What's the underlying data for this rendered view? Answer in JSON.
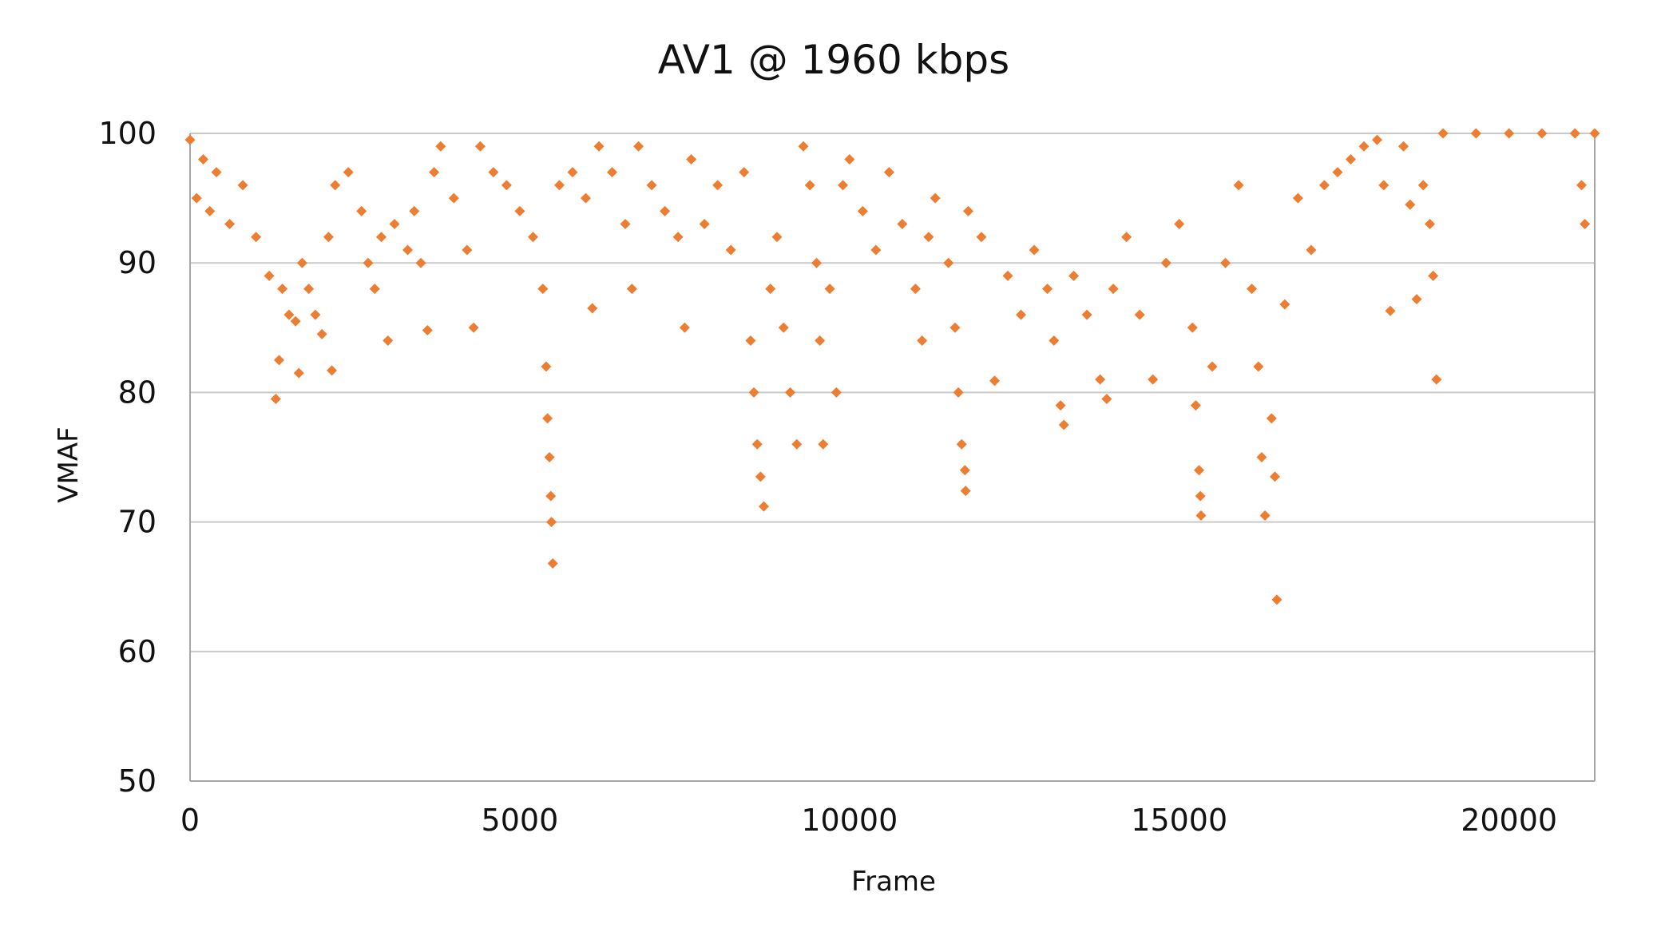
{
  "chart_data": {
    "type": "scatter",
    "title": "AV1 @ 1960 kbps",
    "xlabel": "Frame",
    "ylabel": "VMAF",
    "xlim": [
      0,
      21300
    ],
    "ylim": [
      50,
      100
    ],
    "xticks": [
      0,
      5000,
      10000,
      15000,
      20000
    ],
    "yticks": [
      50,
      60,
      70,
      80,
      90,
      100
    ],
    "grid": "horizontal",
    "legend": "none",
    "marker": "diamond",
    "color": "#ED7D31",
    "series": [
      {
        "points": [
          [
            0,
            99.5
          ],
          [
            100,
            95
          ],
          [
            200,
            98
          ],
          [
            300,
            94
          ],
          [
            400,
            97
          ],
          [
            600,
            93
          ],
          [
            800,
            96
          ],
          [
            1000,
            92
          ],
          [
            1200,
            89
          ],
          [
            1300,
            79.5
          ],
          [
            1350,
            82.5
          ],
          [
            1400,
            88
          ],
          [
            1500,
            86
          ],
          [
            1600,
            85.5
          ],
          [
            1650,
            81.5
          ],
          [
            1700,
            90
          ],
          [
            1800,
            88
          ],
          [
            1900,
            86
          ],
          [
            2000,
            84.5
          ],
          [
            2100,
            92
          ],
          [
            2150,
            81.7
          ],
          [
            2200,
            96
          ],
          [
            2400,
            97
          ],
          [
            2600,
            94
          ],
          [
            2700,
            90
          ],
          [
            2800,
            88
          ],
          [
            2900,
            92
          ],
          [
            3000,
            84
          ],
          [
            3100,
            93
          ],
          [
            3300,
            91
          ],
          [
            3400,
            94
          ],
          [
            3500,
            90
          ],
          [
            3600,
            84.8
          ],
          [
            3700,
            97
          ],
          [
            3800,
            99
          ],
          [
            4000,
            95
          ],
          [
            4200,
            91
          ],
          [
            4300,
            85
          ],
          [
            4400,
            99
          ],
          [
            4600,
            97
          ],
          [
            4800,
            96
          ],
          [
            5000,
            94
          ],
          [
            5200,
            92
          ],
          [
            5350,
            88
          ],
          [
            5400,
            82
          ],
          [
            5420,
            78
          ],
          [
            5450,
            75
          ],
          [
            5470,
            72
          ],
          [
            5480,
            70
          ],
          [
            5500,
            66.8
          ],
          [
            5600,
            96
          ],
          [
            5800,
            97
          ],
          [
            6000,
            95
          ],
          [
            6100,
            86.5
          ],
          [
            6200,
            99
          ],
          [
            6400,
            97
          ],
          [
            6600,
            93
          ],
          [
            6700,
            88
          ],
          [
            6800,
            99
          ],
          [
            7000,
            96
          ],
          [
            7200,
            94
          ],
          [
            7400,
            92
          ],
          [
            7500,
            85
          ],
          [
            7600,
            98
          ],
          [
            7800,
            93
          ],
          [
            8000,
            96
          ],
          [
            8200,
            91
          ],
          [
            8400,
            97
          ],
          [
            8500,
            84
          ],
          [
            8550,
            80
          ],
          [
            8600,
            76
          ],
          [
            8650,
            73.5
          ],
          [
            8700,
            71.2
          ],
          [
            8800,
            88
          ],
          [
            8900,
            92
          ],
          [
            9000,
            85
          ],
          [
            9100,
            80
          ],
          [
            9200,
            76
          ],
          [
            9300,
            99
          ],
          [
            9400,
            96
          ],
          [
            9500,
            90
          ],
          [
            9550,
            84
          ],
          [
            9600,
            76
          ],
          [
            9700,
            88
          ],
          [
            9800,
            80
          ],
          [
            9900,
            96
          ],
          [
            10000,
            98
          ],
          [
            10200,
            94
          ],
          [
            10400,
            91
          ],
          [
            10600,
            97
          ],
          [
            10800,
            93
          ],
          [
            11000,
            88
          ],
          [
            11100,
            84
          ],
          [
            11200,
            92
          ],
          [
            11300,
            95
          ],
          [
            11500,
            90
          ],
          [
            11600,
            85
          ],
          [
            11650,
            80
          ],
          [
            11700,
            76
          ],
          [
            11750,
            74
          ],
          [
            11760,
            72.4
          ],
          [
            11800,
            94
          ],
          [
            12000,
            92
          ],
          [
            12200,
            80.9
          ],
          [
            12400,
            89
          ],
          [
            12600,
            86
          ],
          [
            12800,
            91
          ],
          [
            13000,
            88
          ],
          [
            13100,
            84
          ],
          [
            13200,
            79
          ],
          [
            13250,
            77.5
          ],
          [
            13400,
            89
          ],
          [
            13600,
            86
          ],
          [
            13800,
            81
          ],
          [
            13900,
            79.5
          ],
          [
            14000,
            88
          ],
          [
            14200,
            92
          ],
          [
            14400,
            86
          ],
          [
            14600,
            81
          ],
          [
            14800,
            90
          ],
          [
            15000,
            93
          ],
          [
            15200,
            85
          ],
          [
            15250,
            79
          ],
          [
            15300,
            74
          ],
          [
            15320,
            72
          ],
          [
            15330,
            70.5
          ],
          [
            15500,
            82
          ],
          [
            15700,
            90
          ],
          [
            15900,
            96
          ],
          [
            16100,
            88
          ],
          [
            16200,
            82
          ],
          [
            16250,
            75
          ],
          [
            16300,
            70.5
          ],
          [
            16400,
            78
          ],
          [
            16450,
            73.5
          ],
          [
            16480,
            64
          ],
          [
            16600,
            86.8
          ],
          [
            16800,
            95
          ],
          [
            17000,
            91
          ],
          [
            17200,
            96
          ],
          [
            17400,
            97
          ],
          [
            17600,
            98
          ],
          [
            17800,
            99
          ],
          [
            18000,
            99.5
          ],
          [
            18100,
            96
          ],
          [
            18200,
            86.3
          ],
          [
            18400,
            99
          ],
          [
            18500,
            94.5
          ],
          [
            18600,
            87.2
          ],
          [
            18700,
            96
          ],
          [
            18800,
            93
          ],
          [
            18850,
            89
          ],
          [
            18900,
            81
          ],
          [
            19000,
            100
          ],
          [
            19500,
            100
          ],
          [
            20000,
            100
          ],
          [
            20500,
            100
          ],
          [
            21000,
            100
          ],
          [
            21100,
            96
          ],
          [
            21150,
            93
          ],
          [
            21300,
            100
          ]
        ]
      }
    ]
  }
}
